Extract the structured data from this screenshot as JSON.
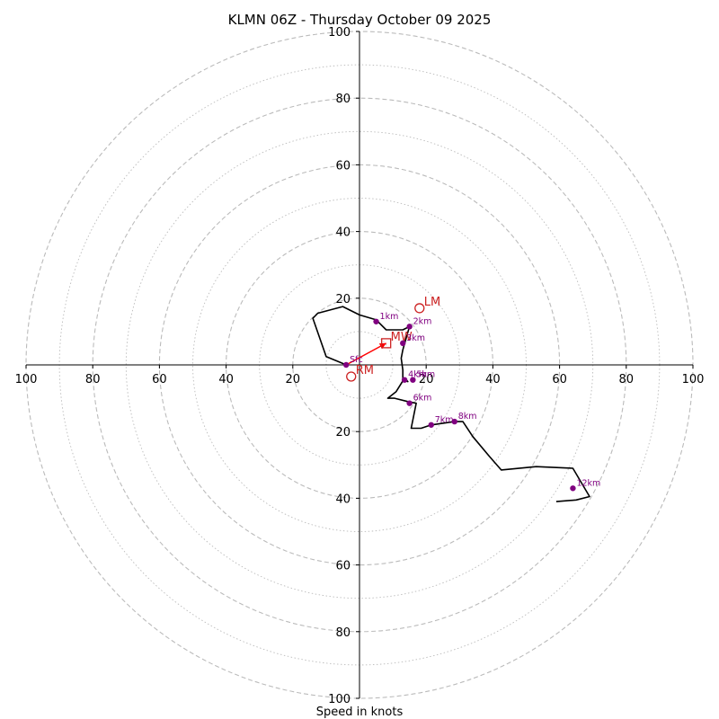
{
  "chart_data": {
    "type": "hodograph",
    "title": "KLMN 06Z - Thursday October 09 2025",
    "xlabel": "Speed in knots",
    "max_speed": 100,
    "ring_step_major": 20,
    "ring_step_minor": 10,
    "x_tick_labels": [
      "100",
      "80",
      "60",
      "40",
      "20",
      "20",
      "40",
      "60",
      "80",
      "100"
    ],
    "x_tick_values": [
      -100,
      -80,
      -60,
      -40,
      -20,
      20,
      40,
      60,
      80,
      100
    ],
    "y_tick_labels": [
      "100",
      "80",
      "60",
      "40",
      "20",
      "20",
      "40",
      "60",
      "80",
      "100"
    ],
    "y_tick_values": [
      100,
      80,
      60,
      40,
      20,
      -20,
      -40,
      -60,
      -80,
      -100
    ],
    "trace": [
      [
        -4,
        0
      ],
      [
        -10,
        2.5
      ],
      [
        -14,
        14
      ],
      [
        -12.5,
        15.5
      ],
      [
        -5,
        17.5
      ],
      [
        0,
        15
      ],
      [
        5,
        13.5
      ],
      [
        8,
        10.5
      ],
      [
        13,
        10.5
      ],
      [
        15,
        11.5
      ],
      [
        14,
        8
      ],
      [
        13,
        4.5
      ],
      [
        12.5,
        2
      ],
      [
        13,
        -1.5
      ],
      [
        13,
        -4.5
      ],
      [
        14.5,
        -5
      ],
      [
        13.5,
        -4
      ],
      [
        11,
        -8
      ],
      [
        8.5,
        -10
      ],
      [
        10.5,
        -10
      ],
      [
        14.5,
        -11
      ],
      [
        17,
        -11.5
      ],
      [
        15.5,
        -19
      ],
      [
        18.5,
        -19
      ],
      [
        21.5,
        -18
      ],
      [
        25,
        -17.5
      ],
      [
        28.5,
        -17
      ],
      [
        31,
        -17
      ],
      [
        34,
        -21.5
      ],
      [
        39,
        -27.5
      ],
      [
        42.5,
        -31.5
      ],
      [
        53,
        -30.5
      ],
      [
        64,
        -31
      ],
      [
        69,
        -39.5
      ],
      [
        65,
        -40.5
      ],
      [
        59,
        -41
      ]
    ],
    "heights": [
      {
        "label": "Sfc",
        "u": -4,
        "v": 0
      },
      {
        "label": "1km",
        "u": 5,
        "v": 13
      },
      {
        "label": "2km",
        "u": 15,
        "v": 11.5
      },
      {
        "label": "3km",
        "u": 13,
        "v": 6.5
      },
      {
        "label": "4km",
        "u": 13.5,
        "v": -4.5
      },
      {
        "label": "5km",
        "u": 16,
        "v": -4.5
      },
      {
        "label": "6km",
        "u": 15,
        "v": -11.5
      },
      {
        "label": "7km",
        "u": 21.5,
        "v": -18
      },
      {
        "label": "8km",
        "u": 28.5,
        "v": -17
      },
      {
        "label": "12km",
        "u": 64,
        "v": -37
      }
    ],
    "storm_motion": {
      "RM": {
        "label": "RM",
        "u": -2.5,
        "v": -3.5
      },
      "LM": {
        "label": "LM",
        "u": 18,
        "v": 17
      },
      "MW": {
        "label": "MW",
        "u": 8,
        "v": 6.5
      }
    },
    "shear_vector": {
      "from_u": -4,
      "from_v": 0,
      "to_u": 8,
      "to_v": 6.5
    },
    "colors": {
      "trace": "#000000",
      "height_points": "#800080",
      "storm_markers": "#cc2222",
      "shear_vector": "#ff0000",
      "grid": "#bbbbbb",
      "axes": "#000000"
    }
  }
}
